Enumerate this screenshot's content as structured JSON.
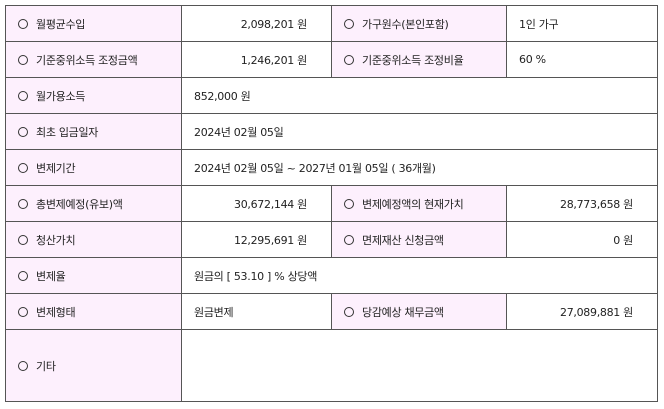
{
  "colors": {
    "label_bg": "#fdf0fd",
    "border": "#555555"
  },
  "rows": [
    {
      "label": "월평균수입",
      "value": "2,098,201 원",
      "label2": "가구원수(본인포함)",
      "value2": "1인 가구"
    },
    {
      "label": "기준중위소득 조정금액",
      "value": "1,246,201 원",
      "label2": "기준중위소득 조정비율",
      "value2": "60 %"
    },
    {
      "label": "월가용소득",
      "value": "852,000 원"
    },
    {
      "label": "최초 입금일자",
      "value": "2024년 02월 05일"
    },
    {
      "label": "변제기간",
      "value": "2024년 02월 05일 ~ 2027년 01월 05일 ( 36개월)"
    },
    {
      "label": "총변제예정(유보)액",
      "value": "30,672,144 원",
      "label2": "변제예정액의 현재가치",
      "value2": "28,773,658 원"
    },
    {
      "label": "청산가치",
      "value": "12,295,691 원",
      "label2": "면제재산 신청금액",
      "value2": "0 원"
    },
    {
      "label": "변제율",
      "value": "원금의 [ 53.10 ] % 상당액"
    },
    {
      "label": "변제형태",
      "value": "원금변제",
      "label2": "당감예상 채무금액",
      "value2": "27,089,881 원"
    },
    {
      "label": "기타",
      "value": ""
    }
  ]
}
